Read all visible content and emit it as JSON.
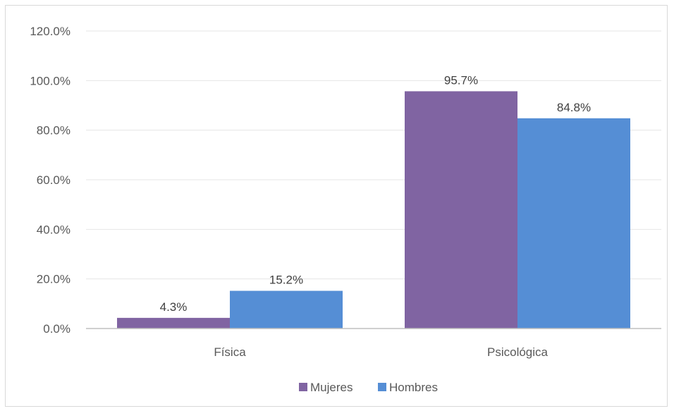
{
  "chart_data": {
    "type": "bar",
    "categories": [
      "Física",
      "Psicológica"
    ],
    "series": [
      {
        "name": "Mujeres",
        "values": [
          4.3,
          95.7
        ],
        "labels": [
          "4.3%",
          "95.7%"
        ],
        "color": "#8064a2"
      },
      {
        "name": "Hombres",
        "values": [
          15.2,
          84.8
        ],
        "labels": [
          "15.2%",
          "84.8%"
        ],
        "color": "#558ed5"
      }
    ],
    "yticks": [
      "0.0%",
      "20.0%",
      "40.0%",
      "60.0%",
      "80.0%",
      "100.0%",
      "120.0%"
    ],
    "ylim": [
      0,
      120
    ],
    "grid": true,
    "legend": "bottom"
  }
}
